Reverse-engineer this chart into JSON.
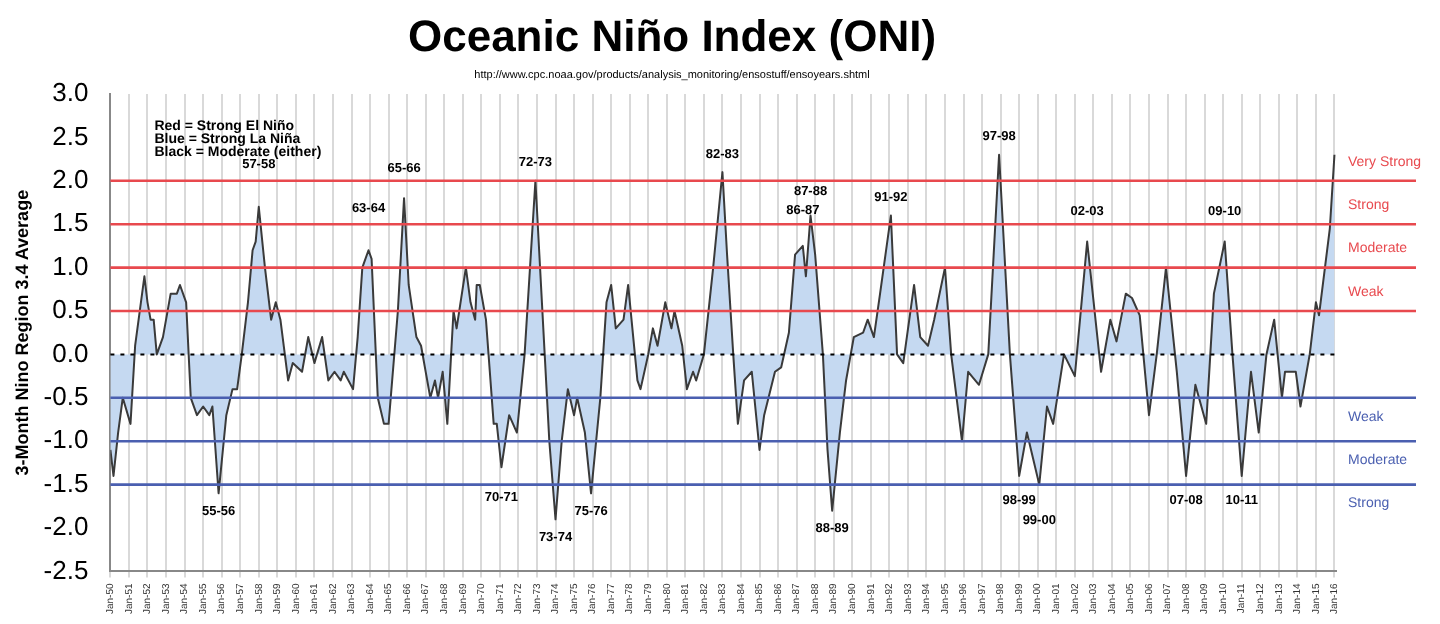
{
  "chart_data": {
    "type": "area",
    "title": "Oceanic Niño Index (ONI)",
    "subtitle": "http://www.cpc.noaa.gov/products/analysis_monitoring/ensostuff/ensoyears.shtml",
    "ylabel": "3-Month Nino Region 3.4 Average",
    "xlim": [
      "1950-01",
      "2016-02"
    ],
    "xticks": [
      {
        "value": "1950-01",
        "label": "Jan-50"
      },
      {
        "value": "1951-01",
        "label": "Jan-51"
      },
      {
        "value": "1952-01",
        "label": "Jan-52"
      },
      {
        "value": "1953-01",
        "label": "Jan-53"
      },
      {
        "value": "1954-01",
        "label": "Jan-54"
      },
      {
        "value": "1955-01",
        "label": "Jan-55"
      },
      {
        "value": "1956-01",
        "label": "Jan-56"
      },
      {
        "value": "1957-01",
        "label": "Jan-57"
      },
      {
        "value": "1958-01",
        "label": "Jan-58"
      },
      {
        "value": "1959-01",
        "label": "Jan-59"
      },
      {
        "value": "1960-01",
        "label": "Jan-60"
      },
      {
        "value": "1961-01",
        "label": "Jan-61"
      },
      {
        "value": "1962-01",
        "label": "Jan-62"
      },
      {
        "value": "1963-01",
        "label": "Jan-63"
      },
      {
        "value": "1964-01",
        "label": "Jan-64"
      },
      {
        "value": "1965-01",
        "label": "Jan-65"
      },
      {
        "value": "1966-01",
        "label": "Jan-66"
      },
      {
        "value": "1967-01",
        "label": "Jan-67"
      },
      {
        "value": "1968-01",
        "label": "Jan-68"
      },
      {
        "value": "1969-01",
        "label": "Jan-69"
      },
      {
        "value": "1970-01",
        "label": "Jan-70"
      },
      {
        "value": "1971-01",
        "label": "Jan-71"
      },
      {
        "value": "1972-01",
        "label": "Jan-72"
      },
      {
        "value": "1973-01",
        "label": "Jan-73"
      },
      {
        "value": "1974-01",
        "label": "Jan-74"
      },
      {
        "value": "1975-01",
        "label": "Jan-75"
      },
      {
        "value": "1976-01",
        "label": "Jan-76"
      },
      {
        "value": "1977-01",
        "label": "Jan-77"
      },
      {
        "value": "1978-01",
        "label": "Jan-78"
      },
      {
        "value": "1979-01",
        "label": "Jan-79"
      },
      {
        "value": "1980-01",
        "label": "Jan-80"
      },
      {
        "value": "1981-01",
        "label": "Jan-81"
      },
      {
        "value": "1982-01",
        "label": "Jan-82"
      },
      {
        "value": "1983-01",
        "label": "Jan-83"
      },
      {
        "value": "1984-01",
        "label": "Jan-84"
      },
      {
        "value": "1985-01",
        "label": "Jan-85"
      },
      {
        "value": "1986-01",
        "label": "Jan-86"
      },
      {
        "value": "1987-01",
        "label": "Jan-87"
      },
      {
        "value": "1988-01",
        "label": "Jan-88"
      },
      {
        "value": "1989-01",
        "label": "Jan-89"
      },
      {
        "value": "1990-01",
        "label": "Jan-90"
      },
      {
        "value": "1991-01",
        "label": "Jan-91"
      },
      {
        "value": "1992-01",
        "label": "Jan-92"
      },
      {
        "value": "1993-01",
        "label": "Jan-93"
      },
      {
        "value": "1994-01",
        "label": "Jan-94"
      },
      {
        "value": "1995-01",
        "label": "Jan-95"
      },
      {
        "value": "1996-01",
        "label": "Jan-96"
      },
      {
        "value": "1997-01",
        "label": "Jan-97"
      },
      {
        "value": "1998-01",
        "label": "Jan-98"
      },
      {
        "value": "1999-01",
        "label": "Jan-99"
      },
      {
        "value": "2000-01",
        "label": "Jan-00"
      },
      {
        "value": "2001-01",
        "label": "Jan-01"
      },
      {
        "value": "2002-01",
        "label": "Jan-02"
      },
      {
        "value": "2003-01",
        "label": "Jan-03"
      },
      {
        "value": "2004-01",
        "label": "Jan-04"
      },
      {
        "value": "2005-01",
        "label": "Jan-05"
      },
      {
        "value": "2006-01",
        "label": "Jan-06"
      },
      {
        "value": "2007-01",
        "label": "Jan-07"
      },
      {
        "value": "2008-01",
        "label": "Jan-08"
      },
      {
        "value": "2009-01",
        "label": "Jan-09"
      },
      {
        "value": "2010-01",
        "label": "Jan-10"
      },
      {
        "value": "2011-01",
        "label": "Jan-11"
      },
      {
        "value": "2012-01",
        "label": "Jan-12"
      },
      {
        "value": "2013-01",
        "label": "Jan-13"
      },
      {
        "value": "2014-01",
        "label": "Jan-14"
      },
      {
        "value": "2015-01",
        "label": "Jan-15"
      },
      {
        "value": "2016-01",
        "label": "Jan-16"
      }
    ],
    "ylim": [
      -2.5,
      3
    ],
    "yticks": [
      {
        "value": -2.5,
        "label": "-2.5"
      },
      {
        "value": -2,
        "label": "-2.0"
      },
      {
        "value": -1.5,
        "label": "-1.5"
      },
      {
        "value": -1,
        "label": "-1.0"
      },
      {
        "value": -0.5,
        "label": "-0.5"
      },
      {
        "value": 0,
        "label": "0.0"
      },
      {
        "value": 0.5,
        "label": "0.5"
      },
      {
        "value": 1,
        "label": "1.0"
      },
      {
        "value": 1.5,
        "label": "1.5"
      },
      {
        "value": 2,
        "label": "2.0"
      },
      {
        "value": 2.5,
        "label": "2.5"
      },
      {
        "value": 3,
        "label": "3.0"
      }
    ],
    "grid": "x",
    "legend": false,
    "marker": "none",
    "line_style": "solid",
    "series": [
      {
        "color": "#c5d9f1",
        "x": [
          "1950-01",
          "1950-03",
          "1950-06",
          "1950-09",
          "1951-02",
          "1951-05",
          "1951-11",
          "1952-01",
          "1952-03",
          "1952-05",
          "1952-07",
          "1952-11",
          "1953-04",
          "1953-08",
          "1953-10",
          "1954-02",
          "1954-05",
          "1954-09",
          "1955-01",
          "1955-05",
          "1955-07",
          "1955-11",
          "1956-04",
          "1956-08",
          "1956-11",
          "1957-02",
          "1957-06",
          "1957-09",
          "1957-11",
          "1958-01",
          "1958-05",
          "1958-09",
          "1958-12",
          "1959-03",
          "1959-08",
          "1959-11",
          "1960-05",
          "1960-09",
          "1961-01",
          "1961-06",
          "1961-10",
          "1962-02",
          "1962-06",
          "1962-08",
          "1963-02",
          "1963-05",
          "1963-08",
          "1963-12",
          "1964-02",
          "1964-06",
          "1964-10",
          "1965-01",
          "1965-07",
          "1965-11",
          "1966-02",
          "1966-07",
          "1966-10",
          "1967-04",
          "1967-07",
          "1967-09",
          "1967-12",
          "1968-03",
          "1968-07",
          "1968-09",
          "1969-03",
          "1969-06",
          "1969-09",
          "1969-10",
          "1969-12",
          "1970-04",
          "1970-09",
          "1970-11",
          "1971-02",
          "1971-07",
          "1971-12",
          "1972-05",
          "1972-12",
          "1973-06",
          "1973-09",
          "1974-01",
          "1974-05",
          "1974-09",
          "1975-01",
          "1975-03",
          "1975-08",
          "1975-12",
          "1976-06",
          "1976-10",
          "1977-01",
          "1977-04",
          "1977-09",
          "1977-12",
          "1978-06",
          "1978-08",
          "1979-01",
          "1979-04",
          "1979-07",
          "1979-12",
          "1980-04",
          "1980-06",
          "1980-11",
          "1981-02",
          "1981-06",
          "1981-08",
          "1982-01",
          "1982-07",
          "1983-01",
          "1983-04",
          "1983-08",
          "1983-11",
          "1984-03",
          "1984-08",
          "1985-01",
          "1985-04",
          "1985-11",
          "1986-03",
          "1986-08",
          "1986-12",
          "1987-05",
          "1987-07",
          "1987-10",
          "1988-01",
          "1988-06",
          "1988-09",
          "1988-12",
          "1989-05",
          "1989-09",
          "1990-02",
          "1990-08",
          "1990-11",
          "1991-03",
          "1991-07",
          "1992-02",
          "1992-06",
          "1992-10",
          "1993-05",
          "1993-09",
          "1994-02",
          "1994-06",
          "1995-01",
          "1995-05",
          "1995-12",
          "1996-04",
          "1996-11",
          "1997-05",
          "1997-12",
          "1998-07",
          "1999-01",
          "1999-06",
          "1999-10",
          "2000-02",
          "2000-07",
          "2000-11",
          "2001-06",
          "2002-01",
          "2002-09",
          "2003-06",
          "2003-12",
          "2004-04",
          "2004-10",
          "2005-02",
          "2005-07",
          "2006-01",
          "2006-06",
          "2006-12",
          "2007-07",
          "2008-01",
          "2008-07",
          "2009-02",
          "2009-07",
          "2010-02",
          "2010-07",
          "2011-01",
          "2011-07",
          "2011-12",
          "2012-05",
          "2012-10",
          "2013-03",
          "2013-05",
          "2013-12",
          "2014-03",
          "2014-09",
          "2015-01",
          "2015-03",
          "2015-10",
          "2016-01"
        ],
        "values": [
          -1.1,
          -1.4,
          -0.9,
          -0.5,
          -0.8,
          0.1,
          0.9,
          0.6,
          0.4,
          0.4,
          0.0,
          0.2,
          0.7,
          0.7,
          0.8,
          0.6,
          -0.5,
          -0.7,
          -0.6,
          -0.7,
          -0.6,
          -1.6,
          -0.7,
          -0.4,
          -0.4,
          0.0,
          0.6,
          1.2,
          1.3,
          1.7,
          1.0,
          0.4,
          0.6,
          0.4,
          -0.3,
          -0.1,
          -0.2,
          0.2,
          -0.1,
          0.2,
          -0.3,
          -0.2,
          -0.3,
          -0.2,
          -0.4,
          0.2,
          1.0,
          1.2,
          1.1,
          -0.5,
          -0.8,
          -0.8,
          0.5,
          1.8,
          0.8,
          0.2,
          0.1,
          -0.5,
          -0.3,
          -0.5,
          -0.2,
          -0.8,
          0.5,
          0.3,
          1.0,
          0.6,
          0.4,
          0.8,
          0.8,
          0.4,
          -0.8,
          -0.8,
          -1.3,
          -0.7,
          -0.9,
          0.0,
          2.0,
          0.0,
          -1.0,
          -1.9,
          -1.0,
          -0.4,
          -0.7,
          -0.5,
          -0.9,
          -1.6,
          -0.5,
          0.6,
          0.8,
          0.3,
          0.4,
          0.8,
          -0.3,
          -0.4,
          0.0,
          0.3,
          0.1,
          0.6,
          0.3,
          0.5,
          0.1,
          -0.4,
          -0.2,
          -0.3,
          0.0,
          1.0,
          2.1,
          1.15,
          0.0,
          -0.8,
          -0.3,
          -0.2,
          -1.1,
          -0.7,
          -0.2,
          -0.15,
          0.25,
          1.15,
          1.25,
          0.9,
          1.6,
          1.15,
          0.0,
          -1.1,
          -1.8,
          -0.9,
          -0.3,
          0.2,
          0.25,
          0.4,
          0.2,
          0.7,
          1.6,
          0.0,
          -0.1,
          0.8,
          0.2,
          0.1,
          0.4,
          1.0,
          0.0,
          -1.0,
          -0.2,
          -0.35,
          0.0,
          2.3,
          0.0,
          -1.4,
          -0.9,
          -1.2,
          -1.5,
          -0.6,
          -0.8,
          0.0,
          -0.25,
          1.3,
          -0.2,
          0.4,
          0.15,
          0.7,
          0.65,
          0.45,
          -0.7,
          0.0,
          1.0,
          -0.2,
          -1.4,
          -0.35,
          -0.8,
          0.7,
          1.3,
          0.0,
          -1.4,
          -0.2,
          -0.9,
          0.0,
          0.4,
          -0.5,
          -0.2,
          -0.2,
          -0.6,
          0.0,
          0.6,
          0.45,
          1.45,
          2.3
        ]
      }
    ],
    "ref_lines": [
      {
        "axis": "y",
        "value": 0,
        "color": "#000000",
        "line_style": "dotted"
      },
      {
        "axis": "y",
        "value": 0.5,
        "label": "Weak",
        "color": "#e8494e"
      },
      {
        "axis": "y",
        "value": 1,
        "label": "Moderate",
        "color": "#e8494e"
      },
      {
        "axis": "y",
        "value": 1.5,
        "label": "Strong",
        "color": "#e8494e"
      },
      {
        "axis": "y",
        "value": 2,
        "label": "Very Strong",
        "color": "#e8494e"
      },
      {
        "axis": "y",
        "value": -0.5,
        "label": "Weak",
        "color": "#4a5fb0"
      },
      {
        "axis": "y",
        "value": -1,
        "label": "Moderate",
        "color": "#4a5fb0"
      },
      {
        "axis": "y",
        "value": -1.5,
        "label": "Strong",
        "color": "#4a5fb0"
      }
    ],
    "annotations": [
      "Red = Strong El Niño",
      "Blue = Strong La Niña",
      "Black = Moderate (either)",
      {
        "text": "55-56",
        "x": "1955-11",
        "y": -1.6
      },
      {
        "text": "57-58",
        "x": "1958-01",
        "y": 1.7
      },
      {
        "text": "63-64",
        "x": "1963-12",
        "y": 1.2
      },
      {
        "text": "65-66",
        "x": "1965-11",
        "y": 1.8
      },
      {
        "text": "70-71",
        "x": "1971-02",
        "y": -1.3
      },
      {
        "text": "72-73",
        "x": "1972-12",
        "y": 2.0
      },
      {
        "text": "73-74",
        "x": "1974-01",
        "y": -1.9
      },
      {
        "text": "75-76",
        "x": "1975-12",
        "y": -1.6
      },
      {
        "text": "82-83",
        "x": "1983-01",
        "y": 2.1
      },
      {
        "text": "86-87",
        "x": "1987-05",
        "y": 1.25
      },
      {
        "text": "87-88",
        "x": "1987-10",
        "y": 1.6
      },
      {
        "text": "88-89",
        "x": "1988-12",
        "y": -1.8
      },
      {
        "text": "91-92",
        "x": "1992-02",
        "y": 1.6
      },
      {
        "text": "97-98",
        "x": "1997-12",
        "y": 2.3
      },
      {
        "text": "98-99",
        "x": "1999-01",
        "y": -1.4
      },
      {
        "text": "99-00",
        "x": "2000-02",
        "y": -1.5
      },
      {
        "text": "02-03",
        "x": "2002-09",
        "y": 1.3
      },
      {
        "text": "07-08",
        "x": "2008-01",
        "y": -1.4
      },
      {
        "text": "09-10",
        "x": "2010-02",
        "y": 1.3
      },
      {
        "text": "10-11",
        "x": "2011-01",
        "y": -1.4
      }
    ]
  }
}
